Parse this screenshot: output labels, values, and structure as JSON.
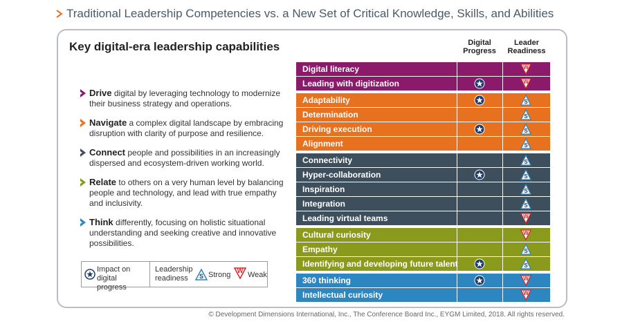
{
  "header": {
    "title": "Traditional Leadership Competencies vs. a New Set of Critical Knowledge, Skills, and Abilities"
  },
  "panel": {
    "title": "Key digital-era leadership capabilities",
    "columns": [
      "Digital Progress",
      "Leader Readiness"
    ],
    "bullets": [
      {
        "keyword": "Drive",
        "text": "digital by leveraging technology to modernize their business strategy and operations.",
        "color": "#8b1a6b"
      },
      {
        "keyword": "Navigate",
        "text": "a complex digital landscape by embracing disruption with clarity of purpose and resilience.",
        "color": "#e8711f"
      },
      {
        "keyword": "Connect",
        "text": "people and possibilities in an increasingly dispersed and ecosystem-driven working world.",
        "color": "#3d4e5c"
      },
      {
        "keyword": "Relate",
        "text": "to others on a very human level by balancing people and technology, and lead with true empathy and inclusivity.",
        "color": "#8a9a1c"
      },
      {
        "keyword": "Think",
        "text": "differently, focusing on holistic situational understanding and seeking creative and innovative possibilities.",
        "color": "#2e86c1"
      }
    ],
    "legend": {
      "impact": "Impact on digital progress",
      "readiness": "Leadership readiness",
      "strong": {
        "icon": "S",
        "label": "Strong"
      },
      "weak": {
        "icon": "W",
        "label": "Weak"
      }
    },
    "rows": [
      {
        "label": "Digital literacy",
        "group": 0,
        "digital": false,
        "readiness": "W"
      },
      {
        "label": "Leading with digitization",
        "group": 0,
        "digital": true,
        "readiness": "W"
      },
      {
        "label": "Adaptability",
        "group": 1,
        "digital": true,
        "readiness": "S"
      },
      {
        "label": "Determination",
        "group": 1,
        "digital": false,
        "readiness": "S"
      },
      {
        "label": "Driving execution",
        "group": 1,
        "digital": true,
        "readiness": "S"
      },
      {
        "label": "Alignment",
        "group": 1,
        "digital": false,
        "readiness": "S"
      },
      {
        "label": "Connectivity",
        "group": 2,
        "digital": false,
        "readiness": "S"
      },
      {
        "label": "Hyper-collaboration",
        "group": 2,
        "digital": true,
        "readiness": "S"
      },
      {
        "label": "Inspiration",
        "group": 2,
        "digital": false,
        "readiness": "S"
      },
      {
        "label": "Integration",
        "group": 2,
        "digital": false,
        "readiness": "S"
      },
      {
        "label": "Leading virtual teams",
        "group": 2,
        "digital": false,
        "readiness": "W"
      },
      {
        "label": "Cultural curiosity",
        "group": 3,
        "digital": false,
        "readiness": "W"
      },
      {
        "label": "Empathy",
        "group": 3,
        "digital": false,
        "readiness": "S"
      },
      {
        "label": "Identifying and developing future talent",
        "group": 3,
        "digital": true,
        "readiness": "S"
      },
      {
        "label": "360 thinking",
        "group": 4,
        "digital": true,
        "readiness": "W"
      },
      {
        "label": "Intellectual curiosity",
        "group": 4,
        "digital": false,
        "readiness": "W"
      }
    ]
  },
  "footer": {
    "text": "© Development Dimensions International, Inc., The Conference Board Inc., EYGM Limited, 2018. All rights reserved."
  }
}
